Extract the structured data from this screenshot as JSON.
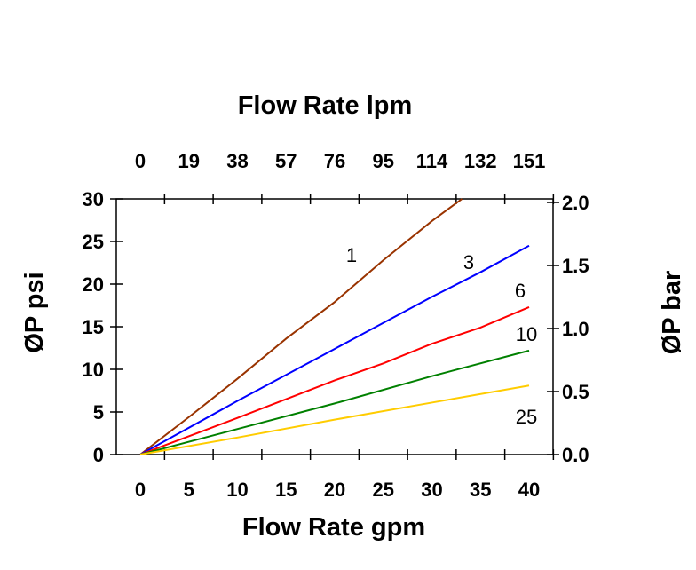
{
  "chart_data": {
    "type": "line",
    "title": "Flow Rate lpm",
    "xlabel": "Flow Rate gpm",
    "ylabel": "ØP psi",
    "y2label": "ØP bar",
    "xlim": [
      0,
      40
    ],
    "ylim": [
      0,
      30
    ],
    "y2lim": [
      0,
      2.0
    ],
    "x_ticks": [
      0,
      5,
      10,
      15,
      20,
      25,
      30,
      35,
      40
    ],
    "x2_tick_labels": [
      "0",
      "19",
      "38",
      "57",
      "76",
      "95",
      "114",
      "132",
      "151"
    ],
    "y_ticks": [
      0,
      5,
      10,
      15,
      20,
      25,
      30
    ],
    "y2_ticks": [
      "0.0",
      "0.5",
      "1.0",
      "1.5",
      "2.0"
    ],
    "grid": false,
    "series": [
      {
        "name": "1",
        "color": "#993300",
        "points": [
          [
            0,
            0
          ],
          [
            5,
            4.4
          ],
          [
            10,
            8.9
          ],
          [
            15,
            13.6
          ],
          [
            20,
            17.9
          ],
          [
            25,
            22.8
          ],
          [
            30,
            27.4
          ],
          [
            33.1,
            30
          ]
        ]
      },
      {
        "name": "3",
        "color": "#0000ff",
        "points": [
          [
            0,
            0
          ],
          [
            10,
            6.3
          ],
          [
            20,
            12.4
          ],
          [
            30,
            18.5
          ],
          [
            35,
            21.4
          ],
          [
            40,
            24.5
          ]
        ]
      },
      {
        "name": "6",
        "color": "#ff0000",
        "points": [
          [
            0,
            0
          ],
          [
            10,
            4.3
          ],
          [
            20,
            8.7
          ],
          [
            25,
            10.7
          ],
          [
            30,
            13.0
          ],
          [
            35,
            14.9
          ],
          [
            40,
            17.3
          ]
        ]
      },
      {
        "name": "10",
        "color": "#008000",
        "points": [
          [
            0,
            0
          ],
          [
            10,
            3.0
          ],
          [
            20,
            6.0
          ],
          [
            30,
            9.2
          ],
          [
            40,
            12.2
          ]
        ]
      },
      {
        "name": "25",
        "color": "#ffcc00",
        "points": [
          [
            0,
            0
          ],
          [
            10,
            2.0
          ],
          [
            20,
            4.1
          ],
          [
            30,
            6.1
          ],
          [
            40,
            8.1
          ]
        ]
      }
    ]
  }
}
